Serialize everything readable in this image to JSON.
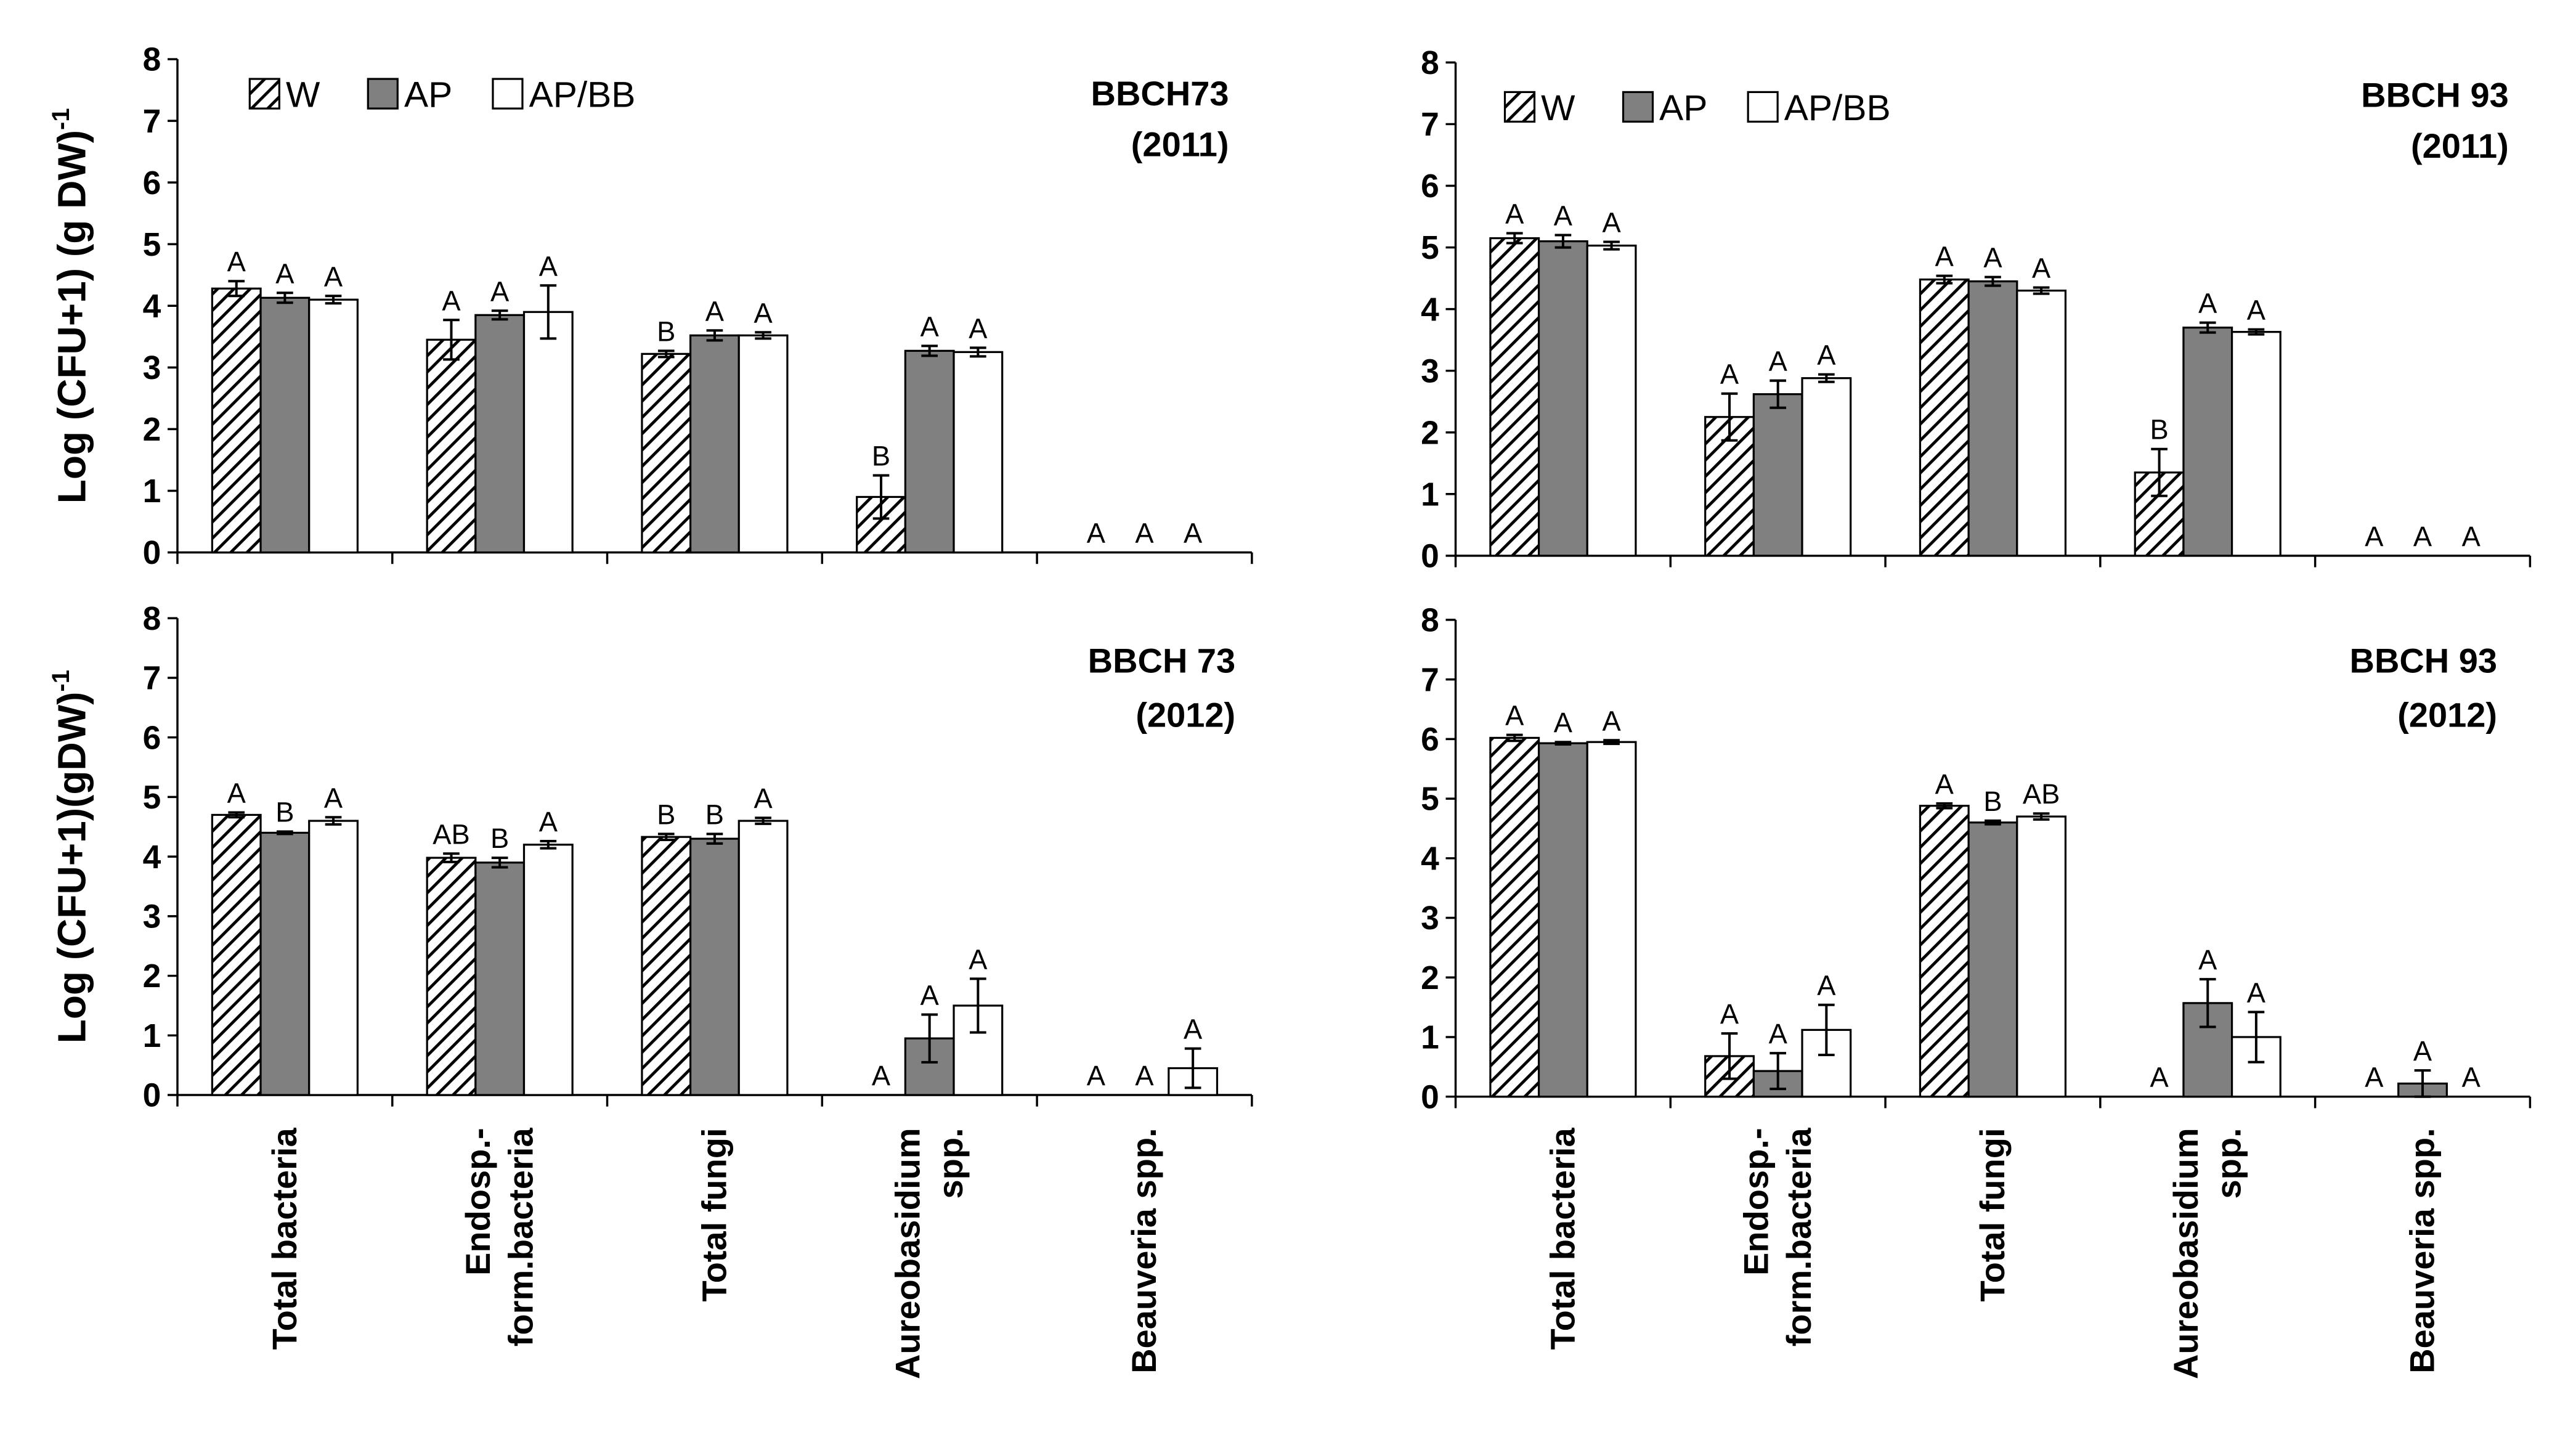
{
  "chart_data": [
    {
      "type": "bar",
      "title": [
        "BBCH73",
        "(2011)"
      ],
      "ylabel": "Log (CFU+1) (g DW)",
      "ylabel_sup": "-1",
      "ylim": [
        0,
        8
      ],
      "yticks": [
        "0",
        "1",
        "2",
        "3",
        "4",
        "5",
        "6",
        "7",
        "8"
      ],
      "legend": [
        "W",
        "AP",
        "AP/BB"
      ],
      "categories": [
        [
          "Total bacteria"
        ],
        [
          "Endosp.-",
          "form.bacteria"
        ],
        [
          "Total fungi"
        ],
        [
          "Aureobasidium",
          "spp."
        ],
        [
          "Beauveria spp."
        ]
      ],
      "series": [
        {
          "name": "W",
          "values": [
            4.28,
            3.45,
            3.22,
            0.9,
            0
          ],
          "errors": [
            0.12,
            0.32,
            0.05,
            0.35,
            0
          ],
          "letters": [
            "A",
            "A",
            "B",
            "B",
            "A"
          ]
        },
        {
          "name": "AP",
          "values": [
            4.13,
            3.85,
            3.52,
            3.27,
            0
          ],
          "errors": [
            0.08,
            0.07,
            0.08,
            0.08,
            0
          ],
          "letters": [
            "A",
            "A",
            "A",
            "A",
            "A"
          ]
        },
        {
          "name": "AP/BB",
          "values": [
            4.1,
            3.9,
            3.52,
            3.25,
            0
          ],
          "errors": [
            0.06,
            0.43,
            0.05,
            0.07,
            0
          ],
          "letters": [
            "A",
            "A",
            "A",
            "A",
            "A"
          ]
        }
      ]
    },
    {
      "type": "bar",
      "title": [
        "BBCH 93",
        "(2011)"
      ],
      "ylim": [
        0,
        8
      ],
      "yticks": [
        "0",
        "1",
        "2",
        "3",
        "4",
        "5",
        "6",
        "7",
        "8"
      ],
      "legend": [
        "W",
        "AP",
        "AP/BB"
      ],
      "categories": [
        [
          "Total bacteria"
        ],
        [
          "Endosp.-",
          "form.bacteria"
        ],
        [
          "Total fungi"
        ],
        [
          "Aureobasidium",
          "spp."
        ],
        [
          "Beauveria spp."
        ]
      ],
      "series": [
        {
          "name": "W",
          "values": [
            5.15,
            2.25,
            4.48,
            1.35,
            0
          ],
          "errors": [
            0.08,
            0.38,
            0.06,
            0.38,
            0
          ],
          "letters": [
            "A",
            "A",
            "A",
            "B",
            "A"
          ]
        },
        {
          "name": "AP",
          "values": [
            5.1,
            2.62,
            4.45,
            3.7,
            0
          ],
          "errors": [
            0.1,
            0.22,
            0.07,
            0.08,
            0
          ],
          "letters": [
            "A",
            "A",
            "A",
            "A",
            "A"
          ]
        },
        {
          "name": "AP/BB",
          "values": [
            5.03,
            2.88,
            4.3,
            3.63,
            0
          ],
          "errors": [
            0.06,
            0.06,
            0.05,
            0.04,
            0
          ],
          "letters": [
            "A",
            "A",
            "A",
            "A",
            "A"
          ]
        }
      ]
    },
    {
      "type": "bar",
      "title": [
        "BBCH 73",
        "(2012)"
      ],
      "ylabel": "Log (CFU+1)(gDW)",
      "ylabel_sup": "-1",
      "ylim": [
        0,
        8
      ],
      "yticks": [
        "0",
        "1",
        "2",
        "3",
        "4",
        "5",
        "6",
        "7",
        "8"
      ],
      "categories": [
        [
          "Total bacteria"
        ],
        [
          "Endosp.-",
          "form.bacteria"
        ],
        [
          "Total fungi"
        ],
        [
          "Aureobasidium",
          "spp."
        ],
        [
          "Beauveria spp."
        ]
      ],
      "series": [
        {
          "name": "W",
          "values": [
            4.7,
            3.98,
            4.33,
            0,
            0
          ],
          "errors": [
            0.04,
            0.07,
            0.05,
            0,
            0
          ],
          "letters": [
            "A",
            "AB",
            "B",
            "A",
            "A"
          ]
        },
        {
          "name": "AP",
          "values": [
            4.4,
            3.9,
            4.3,
            0.95,
            0
          ],
          "errors": [
            0.02,
            0.08,
            0.08,
            0.4,
            0
          ],
          "letters": [
            "B",
            "B",
            "B",
            "A",
            "A"
          ]
        },
        {
          "name": "AP/BB",
          "values": [
            4.6,
            4.2,
            4.6,
            1.5,
            0.45
          ],
          "errors": [
            0.06,
            0.06,
            0.05,
            0.45,
            0.33
          ],
          "letters": [
            "A",
            "A",
            "A",
            "A",
            "A"
          ]
        }
      ]
    },
    {
      "type": "bar",
      "title": [
        "BBCH 93",
        "(2012)"
      ],
      "ylim": [
        0,
        8
      ],
      "yticks": [
        "0",
        "1",
        "2",
        "3",
        "4",
        "5",
        "6",
        "7",
        "8"
      ],
      "categories": [
        [
          "Total bacteria"
        ],
        [
          "Endosp.-",
          "form.bacteria"
        ],
        [
          "Total fungi"
        ],
        [
          "Aureobasidium",
          "spp."
        ],
        [
          "Beauveria spp."
        ]
      ],
      "series": [
        {
          "name": "W",
          "values": [
            6.02,
            0.68,
            4.88,
            0,
            0
          ],
          "errors": [
            0.05,
            0.38,
            0.04,
            0,
            0
          ],
          "letters": [
            "A",
            "A",
            "A",
            "A",
            "A"
          ]
        },
        {
          "name": "AP",
          "values": [
            5.93,
            0.43,
            4.6,
            1.57,
            0.22
          ],
          "errors": [
            0.02,
            0.3,
            0.03,
            0.4,
            0.22
          ],
          "letters": [
            "A",
            "A",
            "B",
            "A",
            "A"
          ]
        },
        {
          "name": "AP/BB",
          "values": [
            5.95,
            1.12,
            4.7,
            1.0,
            0
          ],
          "errors": [
            0.03,
            0.42,
            0.05,
            0.42,
            0
          ],
          "letters": [
            "A",
            "A",
            "AB",
            "A",
            "A"
          ]
        }
      ]
    }
  ],
  "colors": {
    "W_stroke": "#000000",
    "AP": "#808080",
    "AP/BB": "#ffffff",
    "axis": "#000000"
  }
}
